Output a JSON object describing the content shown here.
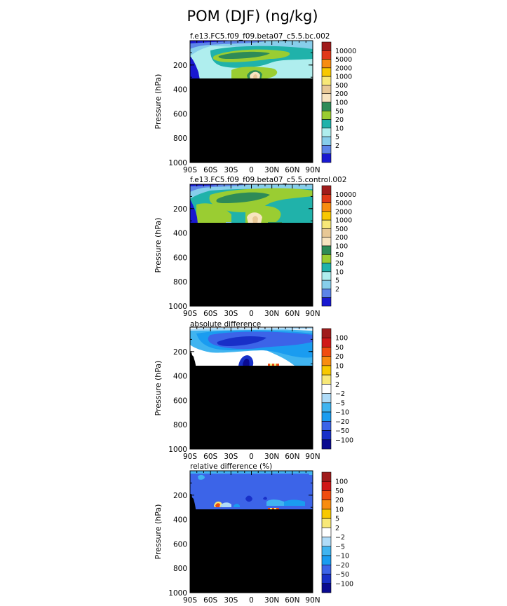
{
  "figure": {
    "title": "POM (DJF) (ng/kg)"
  },
  "chart_data": [
    {
      "type": "contour",
      "title": "f.e13.FC5.f09_f09.beta07_c5.5.bc.002",
      "ylabel": "Pressure (hPa)",
      "x_ticks": [
        "90S",
        "60S",
        "30S",
        "0",
        "30N",
        "60N",
        "90N"
      ],
      "y_ticks": [
        "200",
        "400",
        "600",
        "800",
        "1000"
      ],
      "ylim": [
        1000,
        0
      ],
      "levels": [
        "10000",
        "5000",
        "2000",
        "1000",
        "500",
        "200",
        "100",
        "50",
        "20",
        "10",
        "5",
        "2"
      ],
      "colors": [
        "#a01c1c",
        "#e03818",
        "#f88c10",
        "#f8c800",
        "#f8e878",
        "#e8c896",
        "#f8e4c0",
        "#2e8b57",
        "#9acd32",
        "#20b2aa",
        "#afeeee",
        "#87ceeb",
        "#5c84e8",
        "#1818d0"
      ]
    },
    {
      "type": "contour",
      "title": "f.e13.FC5.f09_f09.beta07_c5.5.control.002",
      "ylabel": "Pressure (hPa)",
      "x_ticks": [
        "90S",
        "60S",
        "30S",
        "0",
        "30N",
        "60N",
        "90N"
      ],
      "y_ticks": [
        "200",
        "400",
        "600",
        "800",
        "1000"
      ],
      "ylim": [
        1000,
        0
      ],
      "levels": [
        "10000",
        "5000",
        "2000",
        "1000",
        "500",
        "200",
        "100",
        "50",
        "20",
        "10",
        "5",
        "2"
      ],
      "colors": [
        "#a01c1c",
        "#e03818",
        "#f88c10",
        "#f8c800",
        "#f8e878",
        "#e8c896",
        "#f8e4c0",
        "#2e8b57",
        "#9acd32",
        "#20b2aa",
        "#afeeee",
        "#87ceeb",
        "#5c84e8",
        "#1818d0"
      ]
    },
    {
      "type": "contour",
      "title": "absolute difference",
      "ylabel": "Pressure (hPa)",
      "x_ticks": [
        "90S",
        "60S",
        "30S",
        "0",
        "30N",
        "60N",
        "90N"
      ],
      "y_ticks": [
        "200",
        "400",
        "600",
        "800",
        "1000"
      ],
      "ylim": [
        1000,
        0
      ],
      "levels": [
        "100",
        "50",
        "20",
        "10",
        "5",
        "2",
        "−2",
        "−5",
        "−10",
        "−20",
        "−50",
        "−100"
      ],
      "colors": [
        "#a01c1c",
        "#d01818",
        "#f04c10",
        "#f88c10",
        "#f8c800",
        "#f8e878",
        "#ffffff",
        "#b0dcf8",
        "#40b4f0",
        "#1a9cf0",
        "#3c64e8",
        "#1830c8",
        "#0a0a90"
      ]
    },
    {
      "type": "contour",
      "title": "relative difference (%)",
      "ylabel": "Pressure (hPa)",
      "x_ticks": [
        "90S",
        "60S",
        "30S",
        "0",
        "30N",
        "60N",
        "90N"
      ],
      "y_ticks": [
        "200",
        "400",
        "600",
        "800",
        "1000"
      ],
      "ylim": [
        1000,
        0
      ],
      "levels": [
        "100",
        "50",
        "20",
        "10",
        "5",
        "2",
        "−2",
        "−5",
        "−10",
        "−20",
        "−50",
        "−100"
      ],
      "colors": [
        "#a01c1c",
        "#d01818",
        "#f04c10",
        "#f88c10",
        "#f8c800",
        "#f8e878",
        "#ffffff",
        "#b0dcf8",
        "#40b4f0",
        "#1a9cf0",
        "#3c64e8",
        "#1830c8",
        "#0a0a90"
      ]
    }
  ]
}
